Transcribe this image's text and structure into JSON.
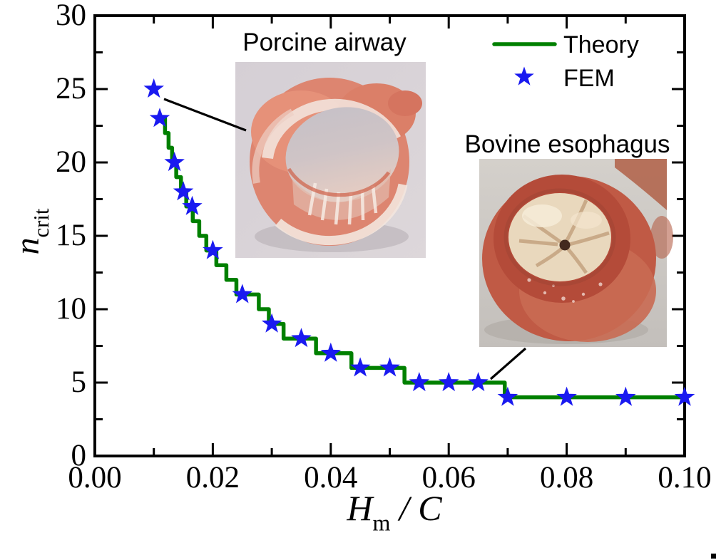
{
  "colors": {
    "background": "#ffffff",
    "axis": "#000000",
    "theory_green": "#008000",
    "fem_blue": "#1a1af0",
    "leader_line": "#000000"
  },
  "axes": {
    "x": {
      "label_main": "H",
      "label_sub": "m",
      "label_sep": " / ",
      "label_tail": "C",
      "ticks": [
        {
          "v": 0.0,
          "label": "0.00"
        },
        {
          "v": 0.02,
          "label": "0.02"
        },
        {
          "v": 0.04,
          "label": "0.04"
        },
        {
          "v": 0.06,
          "label": "0.06"
        },
        {
          "v": 0.08,
          "label": "0.08"
        },
        {
          "v": 0.1,
          "label": "0.10"
        }
      ],
      "minor_step": 0.01
    },
    "y": {
      "label_main": "n",
      "label_sub": "crit",
      "ticks": [
        {
          "v": 0,
          "label": "0"
        },
        {
          "v": 5,
          "label": "5"
        },
        {
          "v": 10,
          "label": "10"
        },
        {
          "v": 15,
          "label": "15"
        },
        {
          "v": 20,
          "label": "20"
        },
        {
          "v": 25,
          "label": "25"
        },
        {
          "v": 30,
          "label": "30"
        }
      ],
      "minor_step": 2.5
    }
  },
  "legend": {
    "theory_label": "Theory",
    "fem_label": "FEM"
  },
  "annotations": {
    "porcine_label": "Porcine airway",
    "bovine_label": "Bovine esophagus"
  },
  "chart_data": {
    "type": "line",
    "title": "",
    "xlabel": "H_m / C",
    "ylabel": "n_crit",
    "xlim": [
      0,
      0.1
    ],
    "ylim": [
      0,
      30
    ],
    "x_major_ticks": [
      0,
      0.02,
      0.04,
      0.06,
      0.08,
      0.1
    ],
    "x_minor_step": 0.01,
    "y_major_ticks": [
      0,
      5,
      10,
      15,
      20,
      25,
      30
    ],
    "y_minor_step": 2.5,
    "grid": false,
    "legend_position": "top-right-inside",
    "series": [
      {
        "name": "Theory",
        "type": "step-line",
        "color": "#008000",
        "step_breaks": [
          [
            0.0113,
            23
          ],
          [
            0.0119,
            22
          ],
          [
            0.0125,
            21
          ],
          [
            0.0131,
            20
          ],
          [
            0.0138,
            19
          ],
          [
            0.0146,
            18
          ],
          [
            0.0155,
            17
          ],
          [
            0.0166,
            16
          ],
          [
            0.0177,
            15
          ],
          [
            0.0189,
            14
          ],
          [
            0.0206,
            13
          ],
          [
            0.0223,
            12
          ],
          [
            0.024,
            11
          ],
          [
            0.0278,
            10
          ],
          [
            0.0295,
            9
          ],
          [
            0.032,
            8
          ],
          [
            0.0375,
            7
          ],
          [
            0.0435,
            6
          ],
          [
            0.0525,
            5
          ],
          [
            0.0695,
            4
          ]
        ],
        "x_end": 0.1
      },
      {
        "name": "FEM",
        "type": "scatter",
        "marker": "star",
        "color": "#1a1af0",
        "points": [
          [
            0.01,
            25
          ],
          [
            0.011,
            23
          ],
          [
            0.0135,
            20
          ],
          [
            0.015,
            18
          ],
          [
            0.0165,
            17
          ],
          [
            0.02,
            14
          ],
          [
            0.025,
            11
          ],
          [
            0.03,
            9
          ],
          [
            0.035,
            8
          ],
          [
            0.04,
            7
          ],
          [
            0.045,
            6
          ],
          [
            0.05,
            6
          ],
          [
            0.055,
            5
          ],
          [
            0.06,
            5
          ],
          [
            0.065,
            5
          ],
          [
            0.07,
            4
          ],
          [
            0.08,
            4
          ],
          [
            0.09,
            4
          ],
          [
            0.1,
            4
          ]
        ]
      }
    ]
  }
}
